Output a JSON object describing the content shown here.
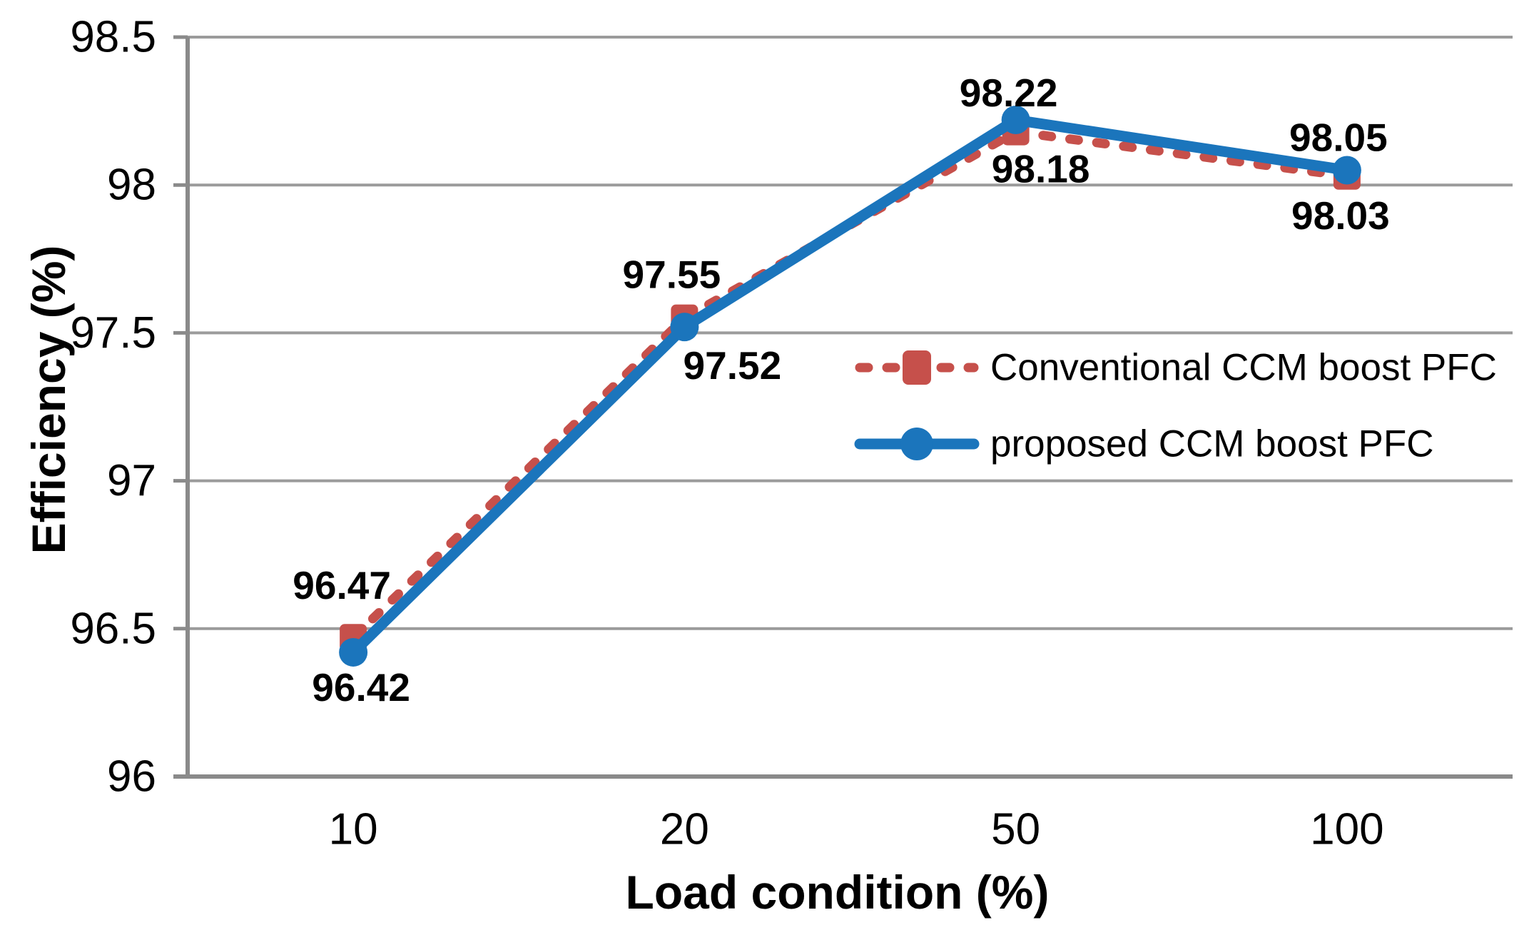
{
  "page": {
    "background": "#FFFFFF"
  },
  "chart_data": {
    "type": "line",
    "title": "",
    "xlabel": "Load condition (%)",
    "ylabel": "Efficiency (%)",
    "categories": [
      "10",
      "20",
      "50",
      "100"
    ],
    "series": [
      {
        "name": "Conventional CCM boost PFC",
        "values": [
          96.47,
          97.55,
          98.18,
          98.03
        ],
        "labels": [
          "96.47",
          "97.55",
          "98.18",
          "98.03"
        ],
        "color": "#C6504B",
        "line_style": "dashed",
        "marker": "square"
      },
      {
        "name": "proposed CCM boost PFC",
        "values": [
          96.42,
          97.52,
          98.22,
          98.05
        ],
        "labels": [
          "96.42",
          "97.52",
          "98.22",
          "98.05"
        ],
        "color": "#1B75BC",
        "line_style": "solid",
        "marker": "circle"
      }
    ],
    "ylim": [
      96,
      98.5
    ],
    "y_ticks": [
      "96",
      "96.5",
      "97",
      "97.5",
      "98",
      "98.5"
    ],
    "grid": true,
    "legend_position": "inside-right",
    "axis_color": "#8A8A8A",
    "grid_color": "#9B9B9B",
    "text_color": "#000000"
  }
}
